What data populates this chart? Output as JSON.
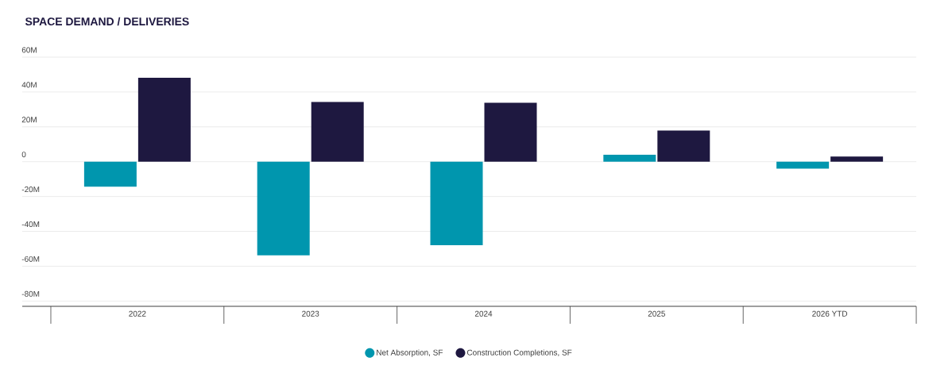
{
  "chart_data": {
    "type": "bar",
    "title": "SPACE DEMAND / DELIVERIES",
    "categories": [
      "2022",
      "2023",
      "2024",
      "2025",
      "2026 YTD"
    ],
    "series": [
      {
        "name": "Net Absorption, SF",
        "color": "#0096ae",
        "values": [
          -14.4,
          -53.8,
          -47.9,
          4.0,
          -4.0
        ]
      },
      {
        "name": "Construction Completions, SF",
        "color": "#1e1840",
        "values": [
          48.2,
          34.3,
          33.8,
          17.9,
          2.9
        ]
      }
    ],
    "ylim": [
      -83,
      60
    ],
    "yticks": [
      {
        "value": 60,
        "label": "60M"
      },
      {
        "value": 40,
        "label": "40M"
      },
      {
        "value": 20,
        "label": "20M"
      },
      0,
      {
        "value": -20,
        "label": "-20M"
      },
      {
        "value": -40,
        "label": "-40M"
      },
      {
        "value": -60,
        "label": "-60M"
      },
      {
        "value": -80,
        "label": "-80M"
      }
    ],
    "grid": "y",
    "legend": "bottom"
  }
}
